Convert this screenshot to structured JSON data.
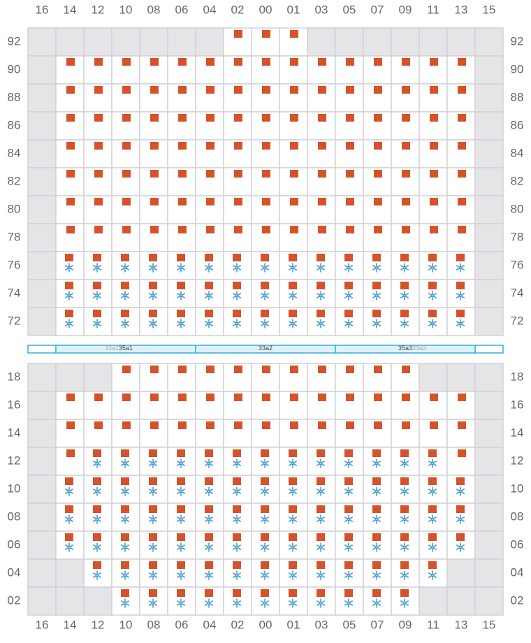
{
  "columns": [
    "16",
    "14",
    "12",
    "10",
    "08",
    "06",
    "04",
    "02",
    "00",
    "01",
    "03",
    "05",
    "07",
    "09",
    "11",
    "13",
    "15"
  ],
  "top_block": {
    "rows": [
      "92",
      "90",
      "88",
      "86",
      "84",
      "82",
      "80",
      "78",
      "76",
      "74",
      "72"
    ]
  },
  "divider": {
    "sections": [
      {
        "labels": [
          "33a1",
          "35a1"
        ]
      },
      {
        "labels": [
          "33a2"
        ]
      },
      {
        "labels": [
          "35a3",
          "33a3"
        ]
      }
    ]
  },
  "bottom_block": {
    "rows": [
      "18",
      "16",
      "14",
      "12",
      "10",
      "08",
      "06",
      "04",
      "02"
    ]
  }
}
